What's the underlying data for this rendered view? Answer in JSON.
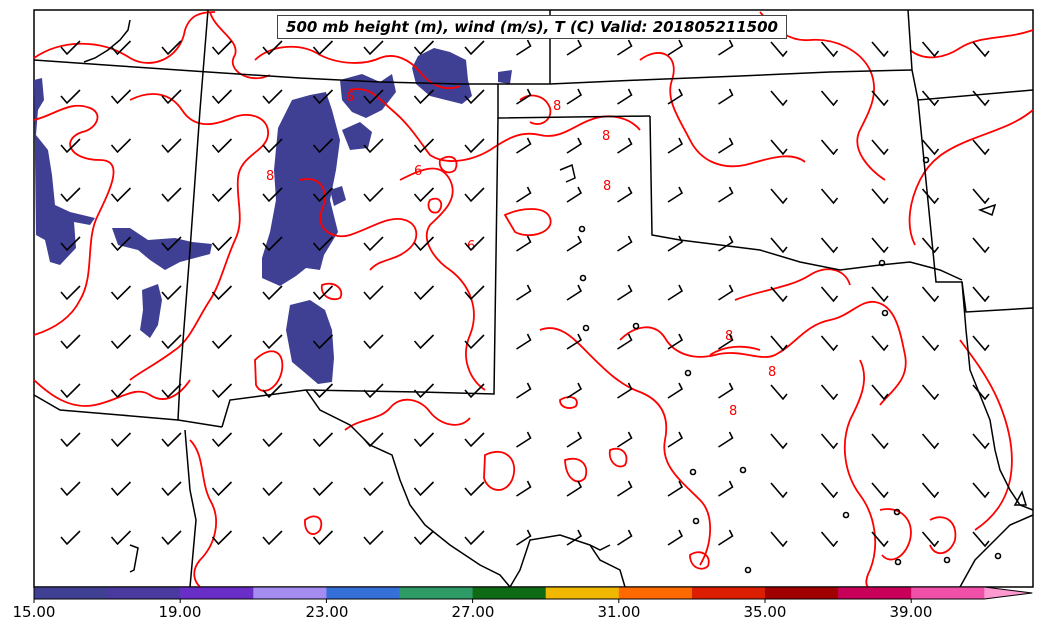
{
  "title": "500 mb height (m), wind (m/s), T (C) Valid: 201805211500",
  "colorbar": {
    "tick_labels": [
      "15.00",
      "19.00",
      "23.00",
      "27.00",
      "31.00",
      "35.00",
      "39.00"
    ],
    "colors": [
      "#3f3f94",
      "#4a3aa0",
      "#6a2ec8",
      "#a58cf0",
      "#3470d8",
      "#2e9a66",
      "#0e6a14",
      "#f0b800",
      "#ff6a00",
      "#dc1e00",
      "#a00000",
      "#c8005a",
      "#f050a8",
      "#ff9ad0"
    ]
  },
  "contour_labels": [
    "6",
    "8",
    "8",
    "6",
    "8",
    "6",
    "8",
    "8",
    "8",
    "8"
  ],
  "colors": {
    "contour": "#ff0000",
    "boundary": "#000000",
    "shading": "#3f3f94",
    "barb": "#000000"
  }
}
